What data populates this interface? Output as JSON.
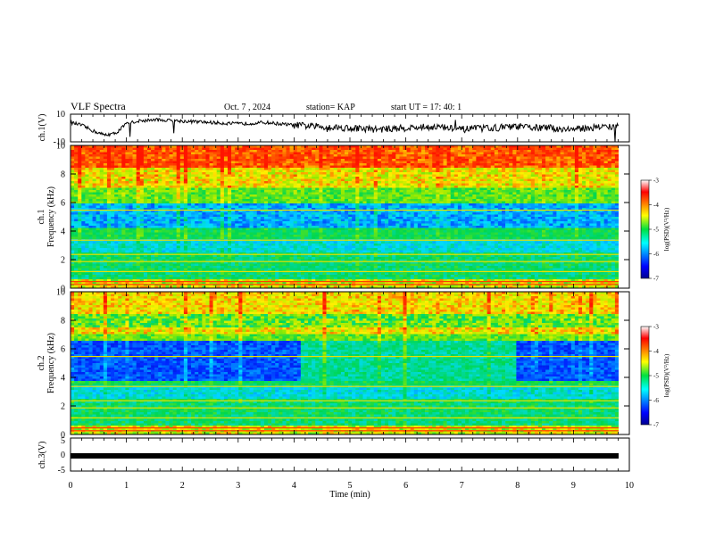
{
  "header": {
    "title": "VLF Spectra",
    "date": "Oct. 7 , 2024",
    "station": "station= KAP",
    "start_time": "start UT =  17: 40: 1"
  },
  "chart_data": [
    {
      "type": "line",
      "panel": "ch1-waveform",
      "ylabel": "ch.1(V)",
      "ylim": [
        -10,
        10
      ],
      "yticks": [
        "10",
        "-10"
      ],
      "xlim": [
        0,
        10
      ],
      "note_series": "amplitude trace approx -5..+8 V with spikes",
      "x": [
        0,
        0.2,
        0.4,
        0.6,
        0.8,
        1.0,
        1.2,
        1.5,
        2.0,
        2.5,
        3.0,
        3.5,
        4.0,
        4.5,
        5.0,
        5.5,
        6.0,
        6.5,
        7.0,
        7.5,
        8.0,
        8.5,
        9.0,
        9.5,
        9.8
      ],
      "y": [
        4,
        2,
        -2,
        -5,
        -4,
        3,
        5,
        6,
        5,
        4,
        3,
        4,
        2,
        1,
        0,
        -1,
        0,
        1,
        -1,
        0,
        1,
        0,
        -1,
        1,
        1
      ]
    },
    {
      "type": "heatmap",
      "panel": "ch1-spectrogram",
      "ylabel": "ch.1\nFrequency (kHz)",
      "ylim": [
        0,
        10
      ],
      "yticks": [
        "0",
        "2",
        "4",
        "6",
        "8",
        "10"
      ],
      "xlim": [
        0,
        10
      ],
      "colorbar": {
        "label": "log(PSD)(V²/Hz)",
        "range": [
          -7,
          -3
        ],
        "ticks": [
          "-3",
          "-4",
          "-5",
          "-6",
          "-7"
        ]
      }
    },
    {
      "type": "heatmap",
      "panel": "ch2-spectrogram",
      "ylabel": "ch.2\nFrequency (kHz)",
      "ylim": [
        0,
        10
      ],
      "yticks": [
        "0",
        "2",
        "4",
        "6",
        "8",
        "10"
      ],
      "xlim": [
        0,
        10
      ],
      "colorbar": {
        "label": "log(PSD)(V²/Hz)",
        "range": [
          -7,
          -3
        ],
        "ticks": [
          "-3",
          "-4",
          "-5",
          "-6",
          "-7"
        ]
      }
    },
    {
      "type": "line",
      "panel": "ch3-waveform",
      "ylabel": "ch.3(V)",
      "ylim": [
        -5,
        5
      ],
      "yticks": [
        "5",
        "0",
        "-5"
      ],
      "xlim": [
        0,
        10
      ],
      "x": [
        0,
        9.8
      ],
      "y": [
        0,
        0
      ]
    }
  ],
  "xaxis": {
    "label": "Time (min)",
    "ticks": [
      "0",
      "1",
      "2",
      "3",
      "4",
      "5",
      "6",
      "7",
      "8",
      "9",
      "10"
    ]
  },
  "colors": {
    "low": "#0000c8",
    "mid": "#00d050",
    "high": "#ff1000"
  }
}
